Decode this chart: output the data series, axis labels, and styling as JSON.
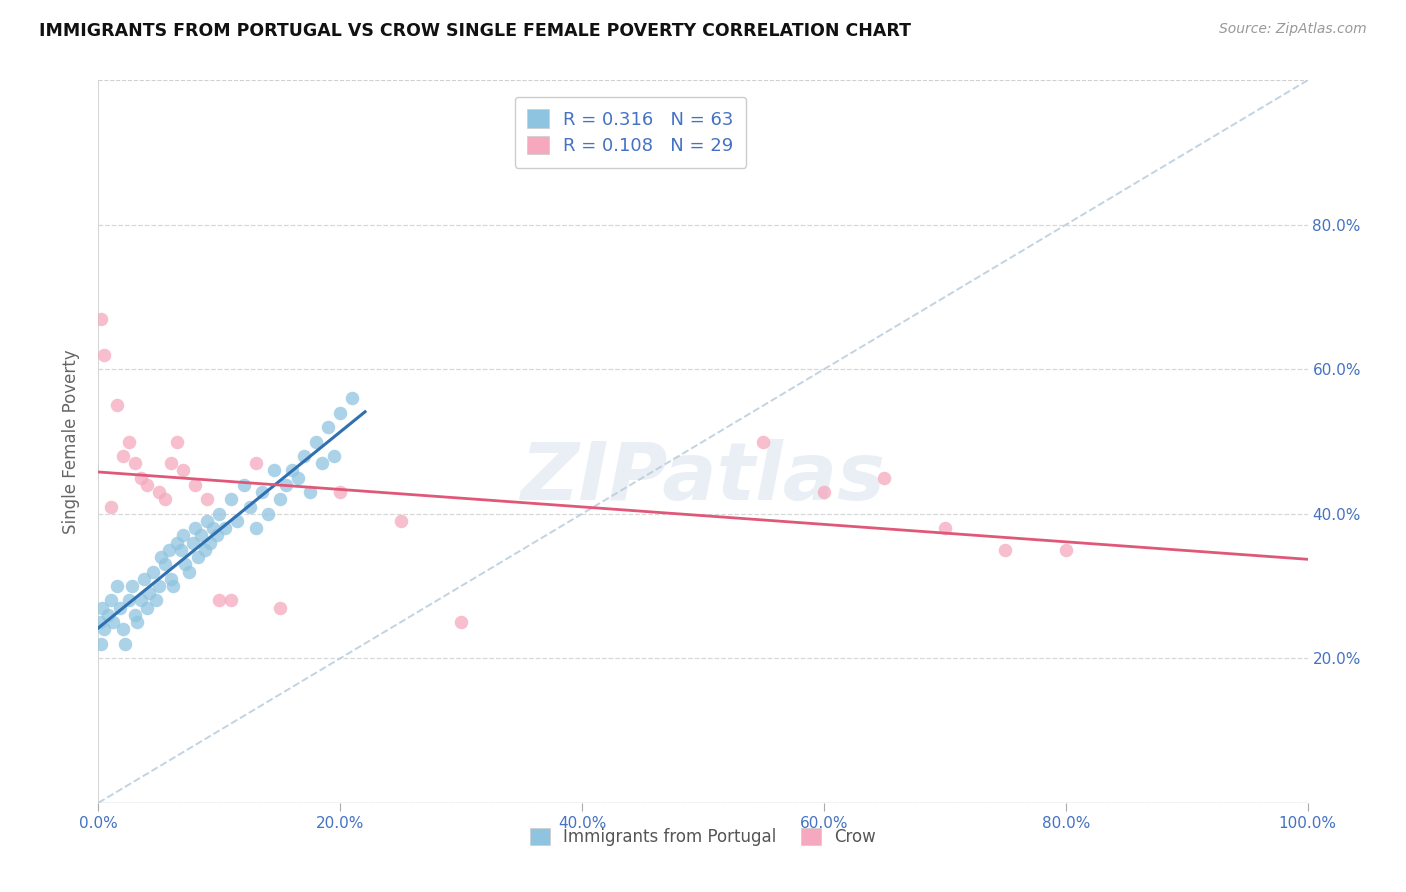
{
  "title": "IMMIGRANTS FROM PORTUGAL VS CROW SINGLE FEMALE POVERTY CORRELATION CHART",
  "source": "Source: ZipAtlas.com",
  "ylabel": "Single Female Poverty",
  "legend_label1": "Immigrants from Portugal",
  "legend_label2": "Crow",
  "r1": 0.316,
  "n1": 63,
  "r2": 0.108,
  "n2": 29,
  "color_blue": "#8fc4e0",
  "color_pink": "#f5a8be",
  "color_blue_line": "#3070b0",
  "color_pink_line": "#e05878",
  "color_dashed": "#b8ccdc",
  "blue_x": [
    0.1,
    0.2,
    0.3,
    0.5,
    0.8,
    1.0,
    1.2,
    1.5,
    1.8,
    2.0,
    2.2,
    2.5,
    2.8,
    3.0,
    3.2,
    3.5,
    3.8,
    4.0,
    4.2,
    4.5,
    4.8,
    5.0,
    5.2,
    5.5,
    5.8,
    6.0,
    6.2,
    6.5,
    6.8,
    7.0,
    7.2,
    7.5,
    7.8,
    8.0,
    8.2,
    8.5,
    8.8,
    9.0,
    9.2,
    9.5,
    9.8,
    10.0,
    10.5,
    11.0,
    11.5,
    12.0,
    12.5,
    13.0,
    13.5,
    14.0,
    14.5,
    15.0,
    15.5,
    16.0,
    16.5,
    17.0,
    17.5,
    18.0,
    18.5,
    19.0,
    19.5,
    20.0,
    21.0
  ],
  "blue_y": [
    25.0,
    22.0,
    27.0,
    24.0,
    26.0,
    28.0,
    25.0,
    30.0,
    27.0,
    24.0,
    22.0,
    28.0,
    30.0,
    26.0,
    25.0,
    28.0,
    31.0,
    27.0,
    29.0,
    32.0,
    28.0,
    30.0,
    34.0,
    33.0,
    35.0,
    31.0,
    30.0,
    36.0,
    35.0,
    37.0,
    33.0,
    32.0,
    36.0,
    38.0,
    34.0,
    37.0,
    35.0,
    39.0,
    36.0,
    38.0,
    37.0,
    40.0,
    38.0,
    42.0,
    39.0,
    44.0,
    41.0,
    38.0,
    43.0,
    40.0,
    46.0,
    42.0,
    44.0,
    46.0,
    45.0,
    48.0,
    43.0,
    50.0,
    47.0,
    52.0,
    48.0,
    54.0,
    56.0
  ],
  "pink_x": [
    0.2,
    0.5,
    1.0,
    1.5,
    2.0,
    2.5,
    3.0,
    3.5,
    4.0,
    5.0,
    5.5,
    6.0,
    6.5,
    7.0,
    8.0,
    9.0,
    10.0,
    11.0,
    13.0,
    15.0,
    20.0,
    25.0,
    30.0,
    55.0,
    60.0,
    65.0,
    70.0,
    75.0,
    80.0
  ],
  "pink_y": [
    67.0,
    62.0,
    41.0,
    55.0,
    48.0,
    50.0,
    47.0,
    45.0,
    44.0,
    43.0,
    42.0,
    47.0,
    50.0,
    46.0,
    44.0,
    42.0,
    28.0,
    28.0,
    47.0,
    27.0,
    43.0,
    39.0,
    25.0,
    50.0,
    43.0,
    45.0,
    38.0,
    35.0,
    35.0
  ],
  "xlim_min": 0.0,
  "xlim_max": 100.0,
  "ylim_min": 0.0,
  "ylim_max": 100.0,
  "xticks": [
    0.0,
    20.0,
    40.0,
    60.0,
    80.0,
    100.0
  ],
  "xticklabels": [
    "0.0%",
    "20.0%",
    "40.0%",
    "60.0%",
    "80.0%",
    "100.0%"
  ],
  "yticks": [
    0.0,
    20.0,
    40.0,
    60.0,
    80.0
  ],
  "yticklabels_right": [
    "",
    "20.0%",
    "40.0%",
    "60.0%",
    "80.0%"
  ],
  "watermark": "ZIPatlas",
  "background_color": "#ffffff",
  "grid_color": "#d0d0d0",
  "tick_color": "#4472c4"
}
